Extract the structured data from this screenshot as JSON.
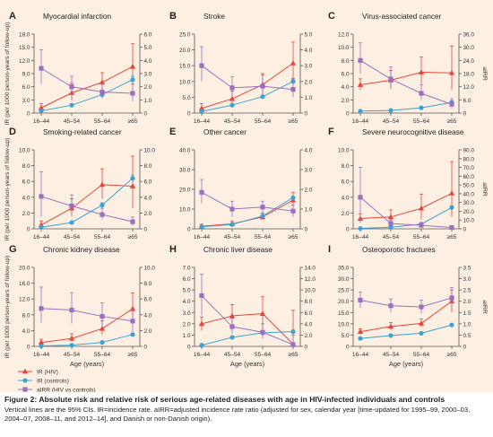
{
  "colors": {
    "background": "#fdf0e2",
    "ir_hiv": "#e8453c",
    "ir_controls": "#3aa3d4",
    "airr": "#9b6fc0",
    "axis": "#555555"
  },
  "x_label": "Age (years)",
  "y_left_label": "IR (per 1000 person-years of follow-up)",
  "y_right_label": "aIRR",
  "legend": [
    {
      "key": "ir_hiv",
      "label": "IR (HIV)",
      "marker": "triangle"
    },
    {
      "key": "ir_controls",
      "label": "IR (controls)",
      "marker": "circle"
    },
    {
      "key": "airr",
      "label": "aIRR (HIV vs controls)",
      "marker": "square"
    }
  ],
  "caption": {
    "title": "Figure 2: Absolute risk and relative risk of serious age-related diseases with age in HIV-infected individuals and controls",
    "note": "Vertical lines are the 95% CIs. IR=incidence rate. aIRR=adjusted incidence rate ratio (adjusted for sex, calendar year [time-updated for 1995–99, 2000–03, 2004–07, 2008–11, and 2012–14], and Danish or non-Danish origin)."
  },
  "chart_data": [
    {
      "type": "line",
      "letter": "A",
      "title": "Myocardial infarction",
      "categories": [
        "16–44",
        "45–54",
        "55–64",
        "≥65"
      ],
      "left_ticks": [
        "0",
        "3.0",
        "6.0",
        "9.0",
        "12.0",
        "15.0",
        "18.0"
      ],
      "ylim_left": [
        0,
        18
      ],
      "right_ticks": [
        "0",
        "1.0",
        "2.0",
        "3.0",
        "4.0",
        "5.0",
        "6.0"
      ],
      "ylim_right": [
        0,
        6
      ],
      "series": [
        {
          "key": "ir_hiv",
          "values": [
            1.2,
            4.6,
            7.0,
            10.6
          ],
          "lo": [
            0.5,
            2.8,
            4.8,
            6.5
          ],
          "hi": [
            2.2,
            6.8,
            9.2,
            15.8
          ]
        },
        {
          "key": "ir_controls",
          "values": [
            0.5,
            1.8,
            4.2,
            7.6
          ],
          "lo": [
            0.4,
            1.5,
            3.7,
            6.8
          ],
          "hi": [
            0.6,
            2.1,
            4.8,
            8.4
          ]
        },
        {
          "key": "airr",
          "values": [
            3.4,
            2.0,
            1.6,
            1.5
          ],
          "lo": [
            2.2,
            1.2,
            1.1,
            0.9
          ],
          "hi": [
            4.8,
            2.8,
            2.2,
            2.2
          ]
        }
      ]
    },
    {
      "type": "line",
      "letter": "B",
      "title": "Stroke",
      "categories": [
        "16–44",
        "45–54",
        "55–64",
        "≥65"
      ],
      "left_ticks": [
        "0",
        "5.0",
        "10.0",
        "15.0",
        "20.0",
        "25.0"
      ],
      "ylim_left": [
        0,
        25
      ],
      "right_ticks": [
        "0",
        "1.0",
        "2.0",
        "3.0",
        "4.0",
        "5.0"
      ],
      "ylim_right": [
        0,
        5
      ],
      "series": [
        {
          "key": "ir_hiv",
          "values": [
            1.5,
            4.5,
            9.0,
            15.8
          ],
          "lo": [
            0.5,
            2.5,
            6.0,
            10.0
          ],
          "hi": [
            3.0,
            7.0,
            12.5,
            22.5
          ]
        },
        {
          "key": "ir_controls",
          "values": [
            0.5,
            2.5,
            5.2,
            10.0
          ],
          "lo": [
            0.4,
            2.2,
            4.7,
            9.2
          ],
          "hi": [
            0.6,
            2.8,
            5.7,
            10.8
          ]
        },
        {
          "key": "airr",
          "values": [
            3.0,
            1.6,
            1.7,
            1.5
          ],
          "lo": [
            2.0,
            1.1,
            1.2,
            1.0
          ],
          "hi": [
            4.2,
            2.3,
            2.4,
            2.2
          ]
        }
      ]
    },
    {
      "type": "line",
      "letter": "C",
      "title": "Virus-associated cancer",
      "categories": [
        "16–44",
        "45–54",
        "55–64",
        "≥65"
      ],
      "left_ticks": [
        "0",
        "2.0",
        "4.0",
        "6.0",
        "8.0",
        "10.0",
        "12.0"
      ],
      "ylim_left": [
        0,
        12
      ],
      "right_ticks": [
        "0",
        "6.0",
        "12.0",
        "18.0",
        "24.0",
        "30.0",
        "36.0"
      ],
      "ylim_right": [
        0,
        36
      ],
      "series": [
        {
          "key": "ir_hiv",
          "values": [
            4.3,
            5.0,
            6.2,
            6.1
          ],
          "lo": [
            3.5,
            3.8,
            4.5,
            3.5
          ],
          "hi": [
            5.2,
            6.5,
            8.5,
            10.2
          ]
        },
        {
          "key": "ir_controls",
          "values": [
            0.3,
            0.4,
            0.8,
            1.6
          ],
          "lo": [
            0.25,
            0.3,
            0.6,
            1.3
          ],
          "hi": [
            0.35,
            0.5,
            1.0,
            1.9
          ]
        },
        {
          "key": "airr",
          "values": [
            24.0,
            15.5,
            9.0,
            4.0
          ],
          "lo": [
            18.0,
            11.0,
            6.0,
            2.0
          ],
          "hi": [
            32.0,
            21.0,
            13.0,
            6.5
          ]
        }
      ]
    },
    {
      "type": "line",
      "letter": "D",
      "title": "Smoking-related cancer",
      "categories": [
        "16–44",
        "45–54",
        "55–64",
        "≥65"
      ],
      "left_ticks": [
        "0",
        "2.0",
        "4.0",
        "6.0",
        "8.0",
        "10.0"
      ],
      "ylim_left": [
        0,
        10
      ],
      "right_ticks": [
        "0",
        "2.0",
        "4.0",
        "6.0",
        "8.0",
        "10.0"
      ],
      "ylim_right": [
        0,
        10
      ],
      "series": [
        {
          "key": "ir_hiv",
          "values": [
            0.5,
            2.6,
            5.6,
            5.4
          ],
          "lo": [
            0.1,
            1.6,
            3.8,
            2.6
          ],
          "hi": [
            1.0,
            3.8,
            7.6,
            9.2
          ]
        },
        {
          "key": "ir_controls",
          "values": [
            0.2,
            0.8,
            3.0,
            6.4
          ],
          "lo": [
            0.15,
            0.7,
            2.7,
            6.0
          ],
          "hi": [
            0.25,
            0.9,
            3.3,
            6.8
          ]
        },
        {
          "key": "airr",
          "values": [
            4.1,
            2.9,
            1.8,
            0.9
          ],
          "lo": [
            1.5,
            1.8,
            1.2,
            0.4
          ],
          "hi": [
            7.2,
            4.3,
            2.6,
            1.5
          ]
        }
      ]
    },
    {
      "type": "line",
      "letter": "E",
      "title": "Other cancer",
      "categories": [
        "16–44",
        "45–54",
        "55–64",
        "≥65"
      ],
      "left_ticks": [
        "0",
        "10.0",
        "20.0",
        "30.0",
        "40.0"
      ],
      "ylim_left": [
        0,
        40
      ],
      "right_ticks": [
        "0",
        "1.0",
        "2.0",
        "3.0",
        "4.0"
      ],
      "ylim_right": [
        0,
        4
      ],
      "series": [
        {
          "key": "ir_hiv",
          "values": [
            1.3,
            2.5,
            6.0,
            14.5
          ],
          "lo": [
            0.6,
            1.5,
            4.5,
            11.0
          ],
          "hi": [
            2.3,
            4.0,
            8.0,
            18.5
          ]
        },
        {
          "key": "ir_controls",
          "values": [
            1.0,
            2.2,
            6.5,
            15.8
          ],
          "lo": [
            0.9,
            2.0,
            6.2,
            15.3
          ],
          "hi": [
            1.1,
            2.4,
            6.8,
            16.3
          ]
        },
        {
          "key": "airr",
          "values": [
            1.85,
            1.0,
            1.1,
            0.9
          ],
          "lo": [
            1.3,
            0.6,
            0.8,
            0.6
          ],
          "hi": [
            2.5,
            1.4,
            1.4,
            1.2
          ]
        }
      ]
    },
    {
      "type": "line",
      "letter": "F",
      "title": "Severe neurocognitive disease",
      "categories": [
        "16–44",
        "45–54",
        "55–64",
        "≥65"
      ],
      "left_ticks": [
        "0",
        "2.0",
        "4.0",
        "6.0",
        "8.0",
        "10.0"
      ],
      "ylim_left": [
        0,
        10
      ],
      "right_ticks": [
        "0",
        "10.0",
        "20.0",
        "30.0",
        "40.0",
        "50.0",
        "60.0",
        "70.0",
        "80.0",
        "90.0"
      ],
      "ylim_right": [
        0,
        90
      ],
      "series": [
        {
          "key": "ir_hiv",
          "values": [
            1.3,
            1.5,
            2.6,
            4.5
          ],
          "lo": [
            0.8,
            0.8,
            1.2,
            1.5
          ],
          "hi": [
            1.9,
            2.4,
            4.4,
            8.5
          ]
        },
        {
          "key": "ir_controls",
          "values": [
            0.05,
            0.2,
            0.6,
            2.7
          ],
          "lo": [
            0.03,
            0.15,
            0.5,
            2.5
          ],
          "hi": [
            0.07,
            0.25,
            0.7,
            2.9
          ]
        },
        {
          "key": "airr",
          "values": [
            36.0,
            6.0,
            4.0,
            1.5
          ],
          "lo": [
            8.0,
            3.0,
            2.0,
            0.5
          ],
          "hi": [
            70.0,
            10.0,
            7.0,
            3.0
          ]
        }
      ]
    },
    {
      "type": "line",
      "letter": "G",
      "title": "Chronic kidney disease",
      "categories": [
        "16–44",
        "45–54",
        "55–64",
        "≥65"
      ],
      "left_ticks": [
        "0",
        "4.0",
        "8.0",
        "12.0",
        "16.0",
        "20.0"
      ],
      "ylim_left": [
        0,
        20
      ],
      "right_ticks": [
        "0",
        "2.0",
        "4.0",
        "6.0",
        "8.0",
        "10.0"
      ],
      "ylim_right": [
        0,
        10
      ],
      "series": [
        {
          "key": "ir_hiv",
          "values": [
            1.0,
            2.0,
            4.5,
            9.5
          ],
          "lo": [
            0.5,
            1.2,
            3.0,
            6.5
          ],
          "hi": [
            1.8,
            3.2,
            6.5,
            13.5
          ]
        },
        {
          "key": "ir_controls",
          "values": [
            0.1,
            0.3,
            1.0,
            3.0
          ],
          "lo": [
            0.08,
            0.25,
            0.85,
            2.7
          ],
          "hi": [
            0.12,
            0.35,
            1.15,
            3.3
          ]
        },
        {
          "key": "airr",
          "values": [
            4.8,
            4.6,
            3.8,
            3.2
          ],
          "lo": [
            3.0,
            2.9,
            2.3,
            1.8
          ],
          "hi": [
            7.5,
            6.8,
            5.5,
            4.8
          ]
        }
      ]
    },
    {
      "type": "line",
      "letter": "H",
      "title": "Chronic liver disease",
      "categories": [
        "16–44",
        "45–54",
        "55–64",
        "≥65"
      ],
      "left_ticks": [
        "0",
        "1.0",
        "2.0",
        "3.0",
        "4.0",
        "5.0",
        "6.0",
        "7.0"
      ],
      "ylim_left": [
        0,
        7
      ],
      "right_ticks": [
        "0",
        "2.0",
        "4.0",
        "6.0",
        "8.0",
        "10.0",
        "12.0",
        "14.0"
      ],
      "ylim_right": [
        0,
        14
      ],
      "series": [
        {
          "key": "ir_hiv",
          "values": [
            2.0,
            2.7,
            2.9,
            0.2
          ],
          "lo": [
            1.4,
            1.8,
            1.5,
            0.05
          ],
          "hi": [
            2.6,
            3.7,
            4.4,
            3.2
          ]
        },
        {
          "key": "ir_controls",
          "values": [
            0.1,
            0.8,
            1.2,
            1.3
          ],
          "lo": [
            0.07,
            0.7,
            1.05,
            1.15
          ],
          "hi": [
            0.13,
            0.9,
            1.35,
            1.45
          ]
        },
        {
          "key": "airr",
          "values": [
            9.0,
            3.5,
            2.5,
            0.3
          ],
          "lo": [
            5.5,
            2.2,
            1.4,
            0.05
          ],
          "hi": [
            12.8,
            5.0,
            4.0,
            2.0
          ]
        }
      ]
    },
    {
      "type": "line",
      "letter": "I",
      "title": "Osteoporotic fractures",
      "categories": [
        "16–44",
        "45–54",
        "55–64",
        "≥65"
      ],
      "left_ticks": [
        "0",
        "5.0",
        "10.0",
        "15.0",
        "20.0",
        "25.0",
        "30.0",
        "35.0"
      ],
      "ylim_left": [
        0,
        35
      ],
      "right_ticks": [
        "0",
        "0.5",
        "1.0",
        "1.5",
        "2.0",
        "2.5",
        "3.0",
        "3.5"
      ],
      "ylim_right": [
        0,
        3.5
      ],
      "series": [
        {
          "key": "ir_hiv",
          "values": [
            6.5,
            8.8,
            10.2,
            20.0
          ],
          "lo": [
            5.3,
            7.3,
            8.5,
            15.0
          ],
          "hi": [
            7.8,
            10.5,
            12.2,
            25.0
          ]
        },
        {
          "key": "ir_controls",
          "values": [
            3.5,
            4.8,
            5.8,
            9.5
          ],
          "lo": [
            3.3,
            4.6,
            5.6,
            9.1
          ],
          "hi": [
            3.7,
            5.0,
            6.0,
            9.9
          ]
        },
        {
          "key": "airr",
          "values": [
            2.05,
            1.8,
            1.75,
            2.15
          ],
          "lo": [
            1.7,
            1.5,
            1.45,
            1.7
          ],
          "hi": [
            2.4,
            2.1,
            2.05,
            2.6
          ]
        }
      ]
    }
  ]
}
